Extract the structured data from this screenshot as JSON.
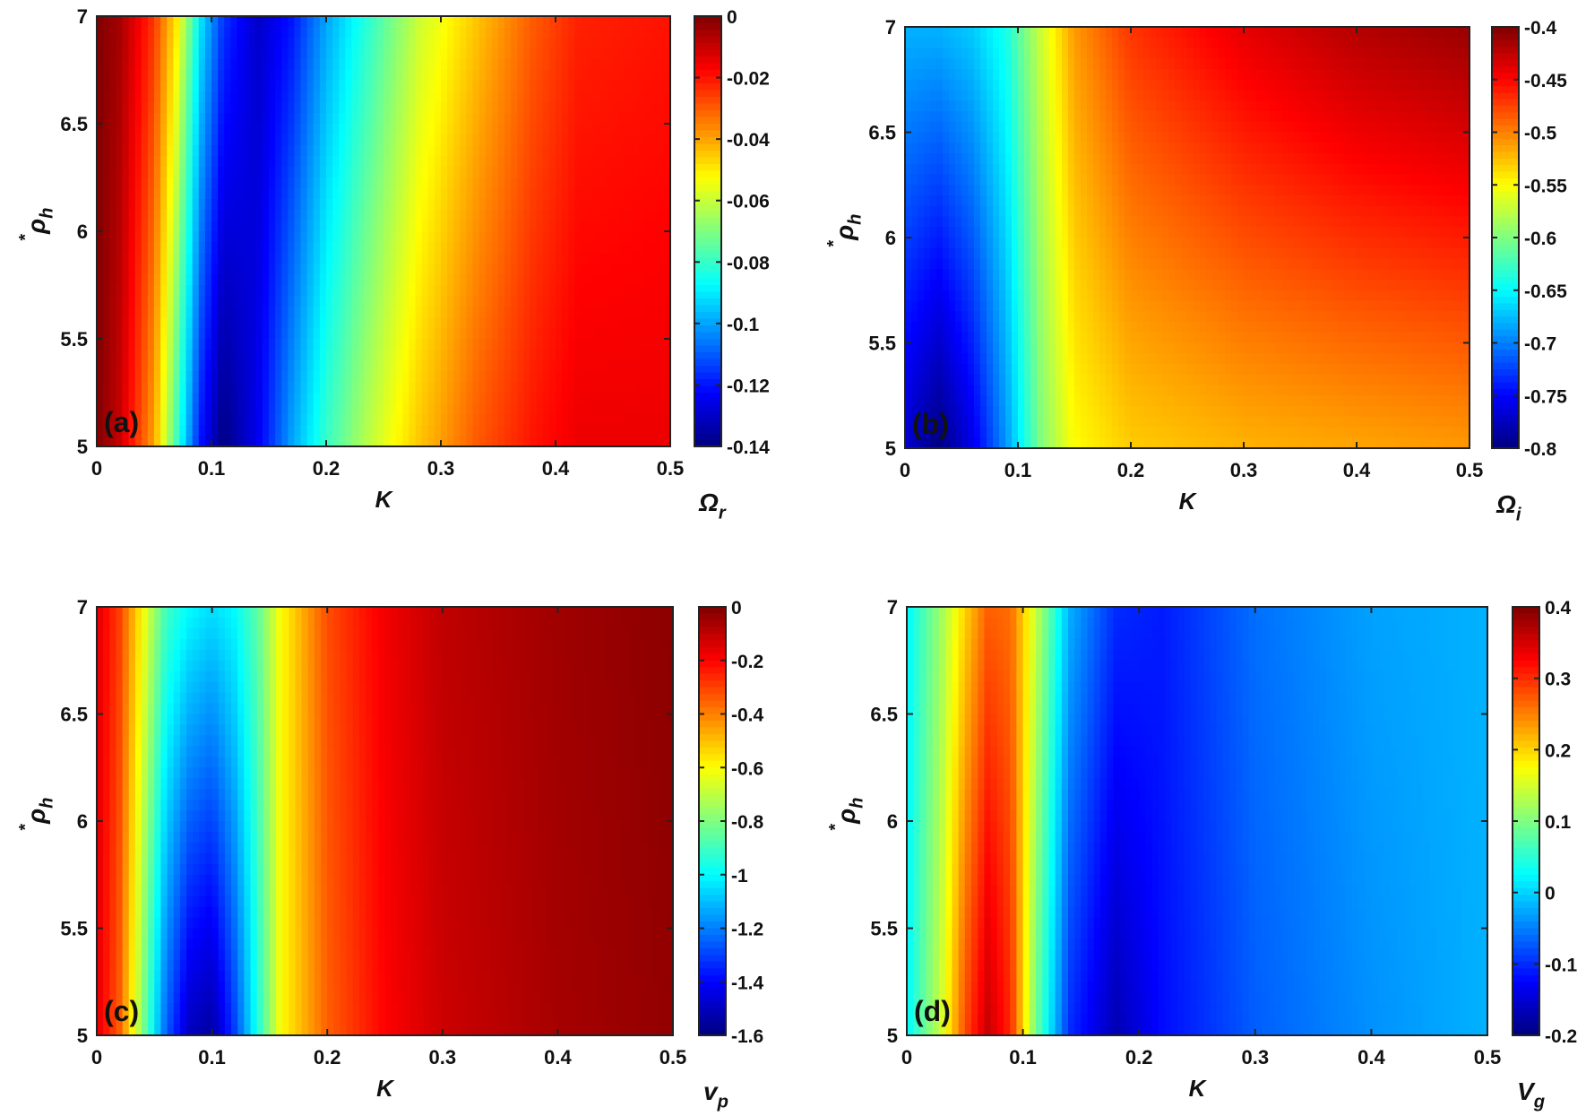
{
  "chart_data": [
    {
      "type": "heatmap",
      "panel_label": "(a)",
      "xlabel": "K",
      "ylabel": {
        "base": "ρ",
        "sub": "h",
        "sup": "*"
      },
      "colorbar_label": {
        "base": "Ω",
        "sub": "r"
      },
      "xlim": [
        0,
        0.5
      ],
      "ylim": [
        5,
        7
      ],
      "clim": [
        -0.14,
        0
      ],
      "xticks": [
        0,
        0.1,
        0.2,
        0.3,
        0.4,
        0.5
      ],
      "yticks": [
        5,
        5.5,
        6,
        6.5,
        7
      ],
      "cticks": [
        -0.14,
        -0.12,
        -0.1,
        -0.08,
        -0.06,
        -0.04,
        -0.02,
        0
      ],
      "profile_K": [
        0,
        0.02,
        0.05,
        0.07,
        0.09,
        0.11,
        0.14,
        0.17,
        0.2,
        0.24,
        0.28,
        0.33,
        0.38,
        0.42,
        0.5
      ],
      "profile_at_rho_5": [
        0,
        -0.01,
        -0.04,
        -0.08,
        -0.12,
        -0.14,
        -0.125,
        -0.1,
        -0.08,
        -0.06,
        -0.045,
        -0.03,
        -0.02,
        -0.015,
        -0.015
      ],
      "profile_at_rho_7": [
        0,
        -0.005,
        -0.025,
        -0.05,
        -0.09,
        -0.115,
        -0.13,
        -0.12,
        -0.1,
        -0.08,
        -0.06,
        -0.045,
        -0.03,
        -0.022,
        -0.02
      ]
    },
    {
      "type": "heatmap",
      "panel_label": "(b)",
      "xlabel": "K",
      "ylabel": {
        "base": "ρ",
        "sub": "h",
        "sup": "*"
      },
      "colorbar_label": {
        "base": "Ω",
        "sub": "i"
      },
      "xlim": [
        0,
        0.5
      ],
      "ylim": [
        5,
        7
      ],
      "clim": [
        -0.8,
        -0.4
      ],
      "xticks": [
        0,
        0.1,
        0.2,
        0.3,
        0.4,
        0.5
      ],
      "yticks": [
        5,
        5.5,
        6,
        6.5,
        7
      ],
      "cticks": [
        -0.8,
        -0.75,
        -0.7,
        -0.65,
        -0.6,
        -0.55,
        -0.5,
        -0.45,
        -0.4
      ],
      "profile_K": [
        0,
        0.03,
        0.06,
        0.09,
        0.12,
        0.15,
        0.2,
        0.3,
        0.4,
        0.5
      ],
      "profile_at_rho_5": [
        -0.77,
        -0.8,
        -0.76,
        -0.69,
        -0.6,
        -0.55,
        -0.53,
        -0.52,
        -0.515,
        -0.51
      ],
      "profile_at_rho_7": [
        -0.68,
        -0.68,
        -0.67,
        -0.64,
        -0.57,
        -0.51,
        -0.47,
        -0.44,
        -0.42,
        -0.41
      ]
    },
    {
      "type": "heatmap",
      "panel_label": "(c)",
      "xlabel": "K",
      "ylabel": {
        "base": "ρ",
        "sub": "h",
        "sup": "*"
      },
      "colorbar_label": {
        "base": "v",
        "sub": "p"
      },
      "xlim": [
        0,
        0.5
      ],
      "ylim": [
        5,
        7
      ],
      "clim": [
        -1.6,
        0
      ],
      "xticks": [
        0,
        0.1,
        0.2,
        0.3,
        0.4,
        0.5
      ],
      "yticks": [
        5,
        5.5,
        6,
        6.5,
        7
      ],
      "cticks": [
        -1.6,
        -1.4,
        -1.2,
        -1,
        -0.8,
        -0.6,
        -0.4,
        -0.2,
        0
      ],
      "profile_K": [
        0,
        0.02,
        0.04,
        0.06,
        0.08,
        0.1,
        0.12,
        0.14,
        0.16,
        0.2,
        0.25,
        0.3,
        0.4,
        0.5
      ],
      "profile_at_rho_5": [
        -0.15,
        -0.35,
        -0.8,
        -1.25,
        -1.5,
        -1.55,
        -1.3,
        -0.95,
        -0.6,
        -0.35,
        -0.2,
        -0.12,
        -0.06,
        -0.03
      ],
      "profile_at_rho_7": [
        -0.15,
        -0.3,
        -0.6,
        -0.9,
        -1.0,
        -1.05,
        -1.0,
        -0.85,
        -0.6,
        -0.32,
        -0.18,
        -0.1,
        -0.05,
        -0.02
      ]
    },
    {
      "type": "heatmap",
      "panel_label": "(d)",
      "xlabel": "K",
      "ylabel": {
        "base": "ρ",
        "sub": "h",
        "sup": "*"
      },
      "colorbar_label": {
        "base": "V",
        "sub": "g"
      },
      "xlim": [
        0,
        0.5
      ],
      "ylim": [
        5,
        7
      ],
      "clim": [
        -0.2,
        0.4
      ],
      "xticks": [
        0,
        0.1,
        0.2,
        0.3,
        0.4,
        0.5
      ],
      "yticks": [
        5,
        5.5,
        6,
        6.5,
        7
      ],
      "cticks": [
        -0.2,
        -0.1,
        0,
        0.1,
        0.2,
        0.3,
        0.4
      ],
      "profile_K": [
        0,
        0.03,
        0.05,
        0.07,
        0.09,
        0.11,
        0.14,
        0.18,
        0.22,
        0.3,
        0.4,
        0.5
      ],
      "profile_at_rho_5": [
        0.02,
        0.15,
        0.28,
        0.36,
        0.3,
        0.1,
        -0.1,
        -0.17,
        -0.12,
        -0.07,
        -0.04,
        -0.02
      ],
      "profile_at_rho_7": [
        0.02,
        0.12,
        0.2,
        0.27,
        0.26,
        0.15,
        -0.02,
        -0.1,
        -0.11,
        -0.06,
        -0.03,
        -0.02
      ]
    }
  ]
}
